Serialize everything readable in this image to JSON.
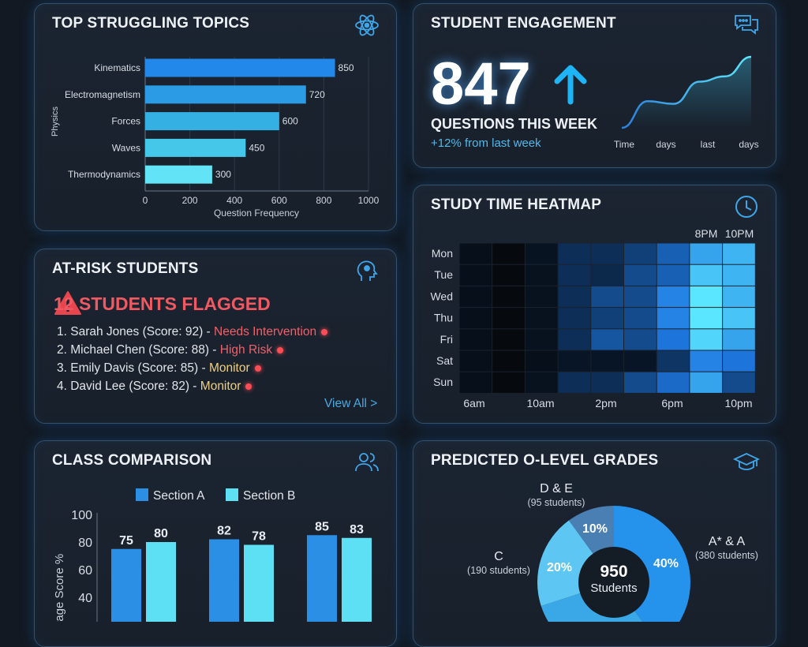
{
  "topics": {
    "title": "TOP STRUGGLING TOPICS",
    "icon": "atom-icon",
    "chart_data": {
      "type": "bar",
      "orientation": "horizontal",
      "categories": [
        "Kinematics",
        "Electromagnetism",
        "Forces",
        "Waves",
        "Thermodynamics"
      ],
      "values": [
        850,
        720,
        600,
        450,
        300
      ],
      "xlabel": "Question Frequency",
      "ylabel": "Physics",
      "xlim": [
        0,
        1000
      ],
      "xticks": [
        "0",
        "200",
        "400",
        "600",
        "800",
        "1000"
      ],
      "grid": true,
      "colors": [
        "#2289ea",
        "#2a9be4",
        "#34b1e2",
        "#44c7e8",
        "#62e4f6"
      ]
    }
  },
  "engagement": {
    "title": "STUDENT ENGAGEMENT",
    "icon": "chat-bubbles-icon",
    "value": "847",
    "trend_icon": "arrow-up-icon",
    "label": "QUESTIONS THIS WEEK",
    "change": "+12% from last week",
    "chart_data": {
      "type": "area",
      "x_labels": [
        "Time",
        "days",
        "last",
        "days"
      ],
      "values": [
        0,
        30,
        27,
        52,
        58,
        80
      ]
    }
  },
  "heatmap": {
    "title": "STUDY TIME HEATMAP",
    "icon": "clock-icon",
    "chart_data": {
      "type": "heatmap",
      "rows": [
        "Mon",
        "Tue",
        "Wed",
        "Thu",
        "Fri",
        "Sat",
        "Sun"
      ],
      "top_labels": [
        "8PM",
        "10PM"
      ],
      "x_labels": [
        "6am",
        "10am",
        "2pm",
        "6pm",
        "10pm"
      ],
      "values": [
        [
          0.05,
          0,
          0.08,
          0.3,
          0.3,
          0.4,
          0.55,
          0.8,
          0.85
        ],
        [
          0.05,
          0,
          0.07,
          0.3,
          0.25,
          0.45,
          0.55,
          0.9,
          0.85
        ],
        [
          0.05,
          0,
          0.07,
          0.3,
          0.45,
          0.45,
          0.7,
          1,
          0.85
        ],
        [
          0.05,
          0,
          0.07,
          0.3,
          0.4,
          0.45,
          0.7,
          1,
          0.9
        ],
        [
          0.05,
          0,
          0.07,
          0.3,
          0.5,
          0.45,
          0.65,
          0.95,
          0.8
        ],
        [
          0.05,
          0,
          0.05,
          0.1,
          0.1,
          0.1,
          0.35,
          0.7,
          0.65
        ],
        [
          0.05,
          0,
          0.07,
          0.3,
          0.3,
          0.45,
          0.6,
          0.8,
          0.45
        ]
      ]
    }
  },
  "at_risk": {
    "title": "AT-RISK STUDENTS",
    "icon": "head-brain-icon",
    "flag_icon": "warning-triangle-icon",
    "flagged": "12 STUDENTS FLAGGED",
    "students": [
      {
        "text": "1. Sarah Jones (Score: 92) - ",
        "status": "Needs Intervention",
        "color": "#f0606a"
      },
      {
        "text": "2. Michael Chen (Score: 88) - ",
        "status": "High Risk",
        "color": "#f0606a"
      },
      {
        "text": "3. Emily Davis (Score: 85) - ",
        "status": "Monitor",
        "color": "#f0d080"
      },
      {
        "text": "4. David Lee (Score: 82) - ",
        "status": "Monitor",
        "color": "#f0d080"
      }
    ],
    "view_all": "View All >"
  },
  "comparison": {
    "title": "CLASS COMPARISON",
    "icon": "users-icon",
    "chart_data": {
      "type": "bar",
      "ylabel": "Average Score %",
      "yticks": [
        "100",
        "80",
        "60",
        "40"
      ],
      "ylim": [
        0,
        100
      ],
      "series": [
        {
          "name": "Section A",
          "color": "#2b8fe6",
          "values": [
            75,
            82,
            85
          ]
        },
        {
          "name": "Section B",
          "color": "#5ee0f4",
          "values": [
            80,
            78,
            83
          ]
        }
      ]
    }
  },
  "grades": {
    "title": "PREDICTED O-LEVEL GRADES",
    "icon": "graduation-cap-icon",
    "center_value": "950",
    "center_label": "Students",
    "chart_data": {
      "type": "pie",
      "donut": true,
      "slices": [
        {
          "label": "A* & A",
          "detail": "(380 students)",
          "value": 40,
          "pct": "40%",
          "color": "#2592ec"
        },
        {
          "label": "",
          "detail": "",
          "value": 30,
          "pct": "",
          "color": "#3aa8e6"
        },
        {
          "label": "C",
          "detail": "(190 students)",
          "value": 20,
          "pct": "20%",
          "color": "#5ec6f2"
        },
        {
          "label": "D & E",
          "detail": "(95 students)",
          "value": 10,
          "pct": "10%",
          "color": "#4a7fb4"
        }
      ]
    }
  }
}
